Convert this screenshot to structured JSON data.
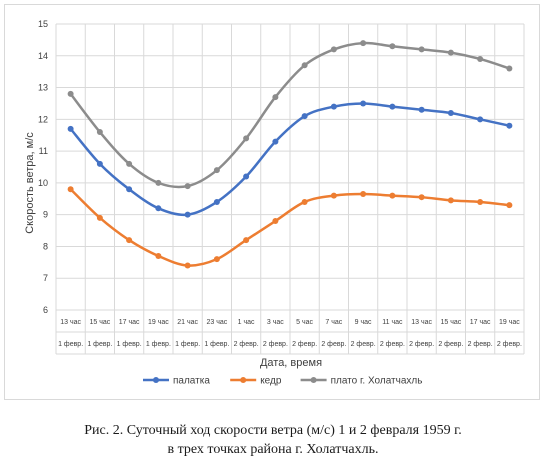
{
  "chart_data": {
    "type": "line",
    "ylabel": "Скорость ветра, м/с",
    "xlabel": "Дата, время",
    "ylim": [
      6,
      15
    ],
    "yticks": [
      6,
      7,
      8,
      9,
      10,
      11,
      12,
      13,
      14,
      15
    ],
    "grid": "horizontal and vertical",
    "legend_position": "bottom",
    "categories": [
      {
        "time": "13 час",
        "date": "1 февр."
      },
      {
        "time": "15 час",
        "date": "1 февр."
      },
      {
        "time": "17 час",
        "date": "1 февр."
      },
      {
        "time": "19 час",
        "date": "1 февр."
      },
      {
        "time": "21 час",
        "date": "1 февр."
      },
      {
        "time": "23 час",
        "date": "1 февр."
      },
      {
        "time": "1 час",
        "date": "2 февр."
      },
      {
        "time": "3 час",
        "date": "2 февр."
      },
      {
        "time": "5 час",
        "date": "2 февр."
      },
      {
        "time": "7 час",
        "date": "2 февр."
      },
      {
        "time": "9 час",
        "date": "2 февр."
      },
      {
        "time": "11 час",
        "date": "2 февр."
      },
      {
        "time": "13 час",
        "date": "2 февр."
      },
      {
        "time": "15 час",
        "date": "2 февр."
      },
      {
        "time": "17 час",
        "date": "2 февр."
      },
      {
        "time": "19 час",
        "date": "2 февр."
      }
    ],
    "series": [
      {
        "name": "палатка",
        "color": "#4472c4",
        "values": [
          11.7,
          10.6,
          9.8,
          9.2,
          9.0,
          9.4,
          10.2,
          11.3,
          12.1,
          12.4,
          12.5,
          12.4,
          12.3,
          12.2,
          12.0,
          11.8
        ]
      },
      {
        "name": "кедр",
        "color": "#ed7d31",
        "values": [
          9.8,
          8.9,
          8.2,
          7.7,
          7.4,
          7.6,
          8.2,
          8.8,
          9.4,
          9.6,
          9.65,
          9.6,
          9.55,
          9.45,
          9.4,
          9.3
        ]
      },
      {
        "name": "плато г. Холатчахль",
        "color": "#8c8c8c",
        "values": [
          12.8,
          11.6,
          10.6,
          10.0,
          9.9,
          10.4,
          11.4,
          12.7,
          13.7,
          14.2,
          14.4,
          14.3,
          14.2,
          14.1,
          13.9,
          13.6
        ]
      }
    ]
  },
  "caption": {
    "line1": "Рис. 2. Суточный ход скорости ветра (м/с) 1 и 2 февраля 1959 г.",
    "line2": "в трех точках района г. Холатчахль."
  }
}
